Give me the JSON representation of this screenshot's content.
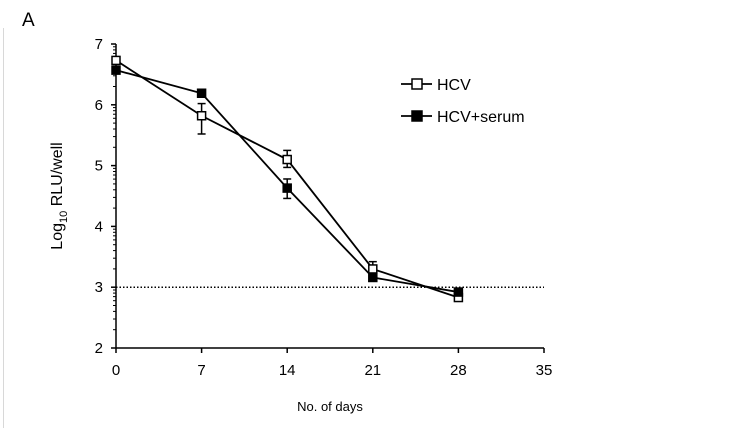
{
  "panel_label": "A",
  "chart_data": {
    "type": "line",
    "title": "",
    "xlabel": "No. of days",
    "ylabel_main": "Log",
    "ylabel_sub": "10",
    "ylabel_rest": " RLU/well",
    "xlim": [
      0,
      35
    ],
    "ylim": [
      2,
      7
    ],
    "xticks": [
      0,
      7,
      14,
      21,
      28,
      35
    ],
    "yticks": [
      2,
      3,
      4,
      5,
      6,
      7
    ],
    "y_minor_ticks": "log",
    "reference_line": {
      "y": 3,
      "style": "dotted"
    },
    "legend_position": "top-right",
    "x": [
      0,
      7,
      14,
      21,
      28
    ],
    "series": [
      {
        "name": "HCV",
        "marker": "open-square",
        "values": [
          6.73,
          5.82,
          5.1,
          3.3,
          2.83
        ],
        "err_low": [
          0.03,
          0.3,
          0.13,
          0.1,
          0.03
        ],
        "err_high": [
          0.03,
          0.2,
          0.15,
          0.12,
          0.03
        ]
      },
      {
        "name": "HCV+serum",
        "marker": "filled-square",
        "values": [
          6.57,
          6.19,
          4.63,
          3.16,
          2.92
        ],
        "err_low": [
          0.03,
          0.03,
          0.17,
          0.05,
          0.03
        ],
        "err_high": [
          0.03,
          0.03,
          0.15,
          0.05,
          0.03
        ]
      }
    ]
  }
}
